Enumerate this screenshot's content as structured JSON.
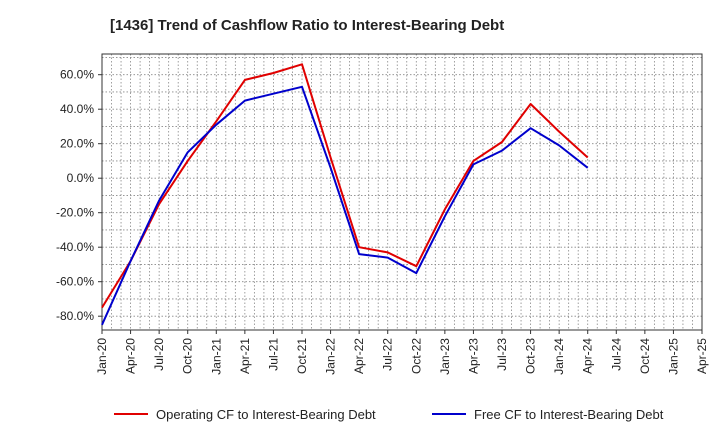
{
  "chart_data": {
    "type": "line",
    "title": "[1436]  Trend of Cashflow Ratio to Interest-Bearing Debt",
    "xlabel": "",
    "ylabel": "",
    "x_ticks": [
      "Jan-20",
      "Apr-20",
      "Jul-20",
      "Oct-20",
      "Jan-21",
      "Apr-21",
      "Jul-21",
      "Oct-21",
      "Jan-22",
      "Apr-22",
      "Jul-22",
      "Oct-22",
      "Jan-23",
      "Apr-23",
      "Jul-23",
      "Oct-23",
      "Jan-24",
      "Apr-24",
      "Jul-24",
      "Oct-24",
      "Jan-25",
      "Apr-25"
    ],
    "y_ticks": [
      "60.0%",
      "40.0%",
      "20.0%",
      "0.0%",
      "-20.0%",
      "-40.0%",
      "-60.0%",
      "-80.0%"
    ],
    "y_tick_values": [
      60,
      40,
      20,
      0,
      -20,
      -40,
      -60,
      -80
    ],
    "ylim": [
      -88,
      72
    ],
    "grid": true,
    "legend_position": "bottom",
    "series": [
      {
        "name": "Operating CF to Interest-Bearing Debt",
        "color": "#e00000",
        "x": [
          "Jan-20",
          "Apr-20",
          "Jul-20",
          "Oct-20",
          "Jan-21",
          "Apr-21",
          "Jul-21",
          "Oct-21",
          "Jan-22",
          "Apr-22",
          "Jul-22",
          "Oct-22",
          "Jan-23",
          "Apr-23",
          "Jul-23",
          "Oct-23",
          "Jan-24",
          "Apr-24"
        ],
        "values": [
          -75,
          -48,
          -15,
          10,
          33,
          57,
          61,
          66,
          12,
          -40,
          -43,
          -51,
          -18,
          10,
          21,
          43,
          27,
          12
        ]
      },
      {
        "name": "Free CF to Interest-Bearing Debt",
        "color": "#0000cc",
        "x": [
          "Jan-20",
          "Apr-20",
          "Jul-20",
          "Oct-20",
          "Jan-21",
          "Apr-21",
          "Jul-21",
          "Oct-21",
          "Jan-22",
          "Apr-22",
          "Jul-22",
          "Oct-22",
          "Jan-23",
          "Apr-23",
          "Jul-23",
          "Oct-23",
          "Jan-24",
          "Apr-24"
        ],
        "values": [
          -85,
          -48,
          -13,
          15,
          31,
          45,
          49,
          53,
          6,
          -44,
          -46,
          -55,
          -22,
          8,
          16,
          29,
          19,
          6
        ]
      }
    ]
  }
}
